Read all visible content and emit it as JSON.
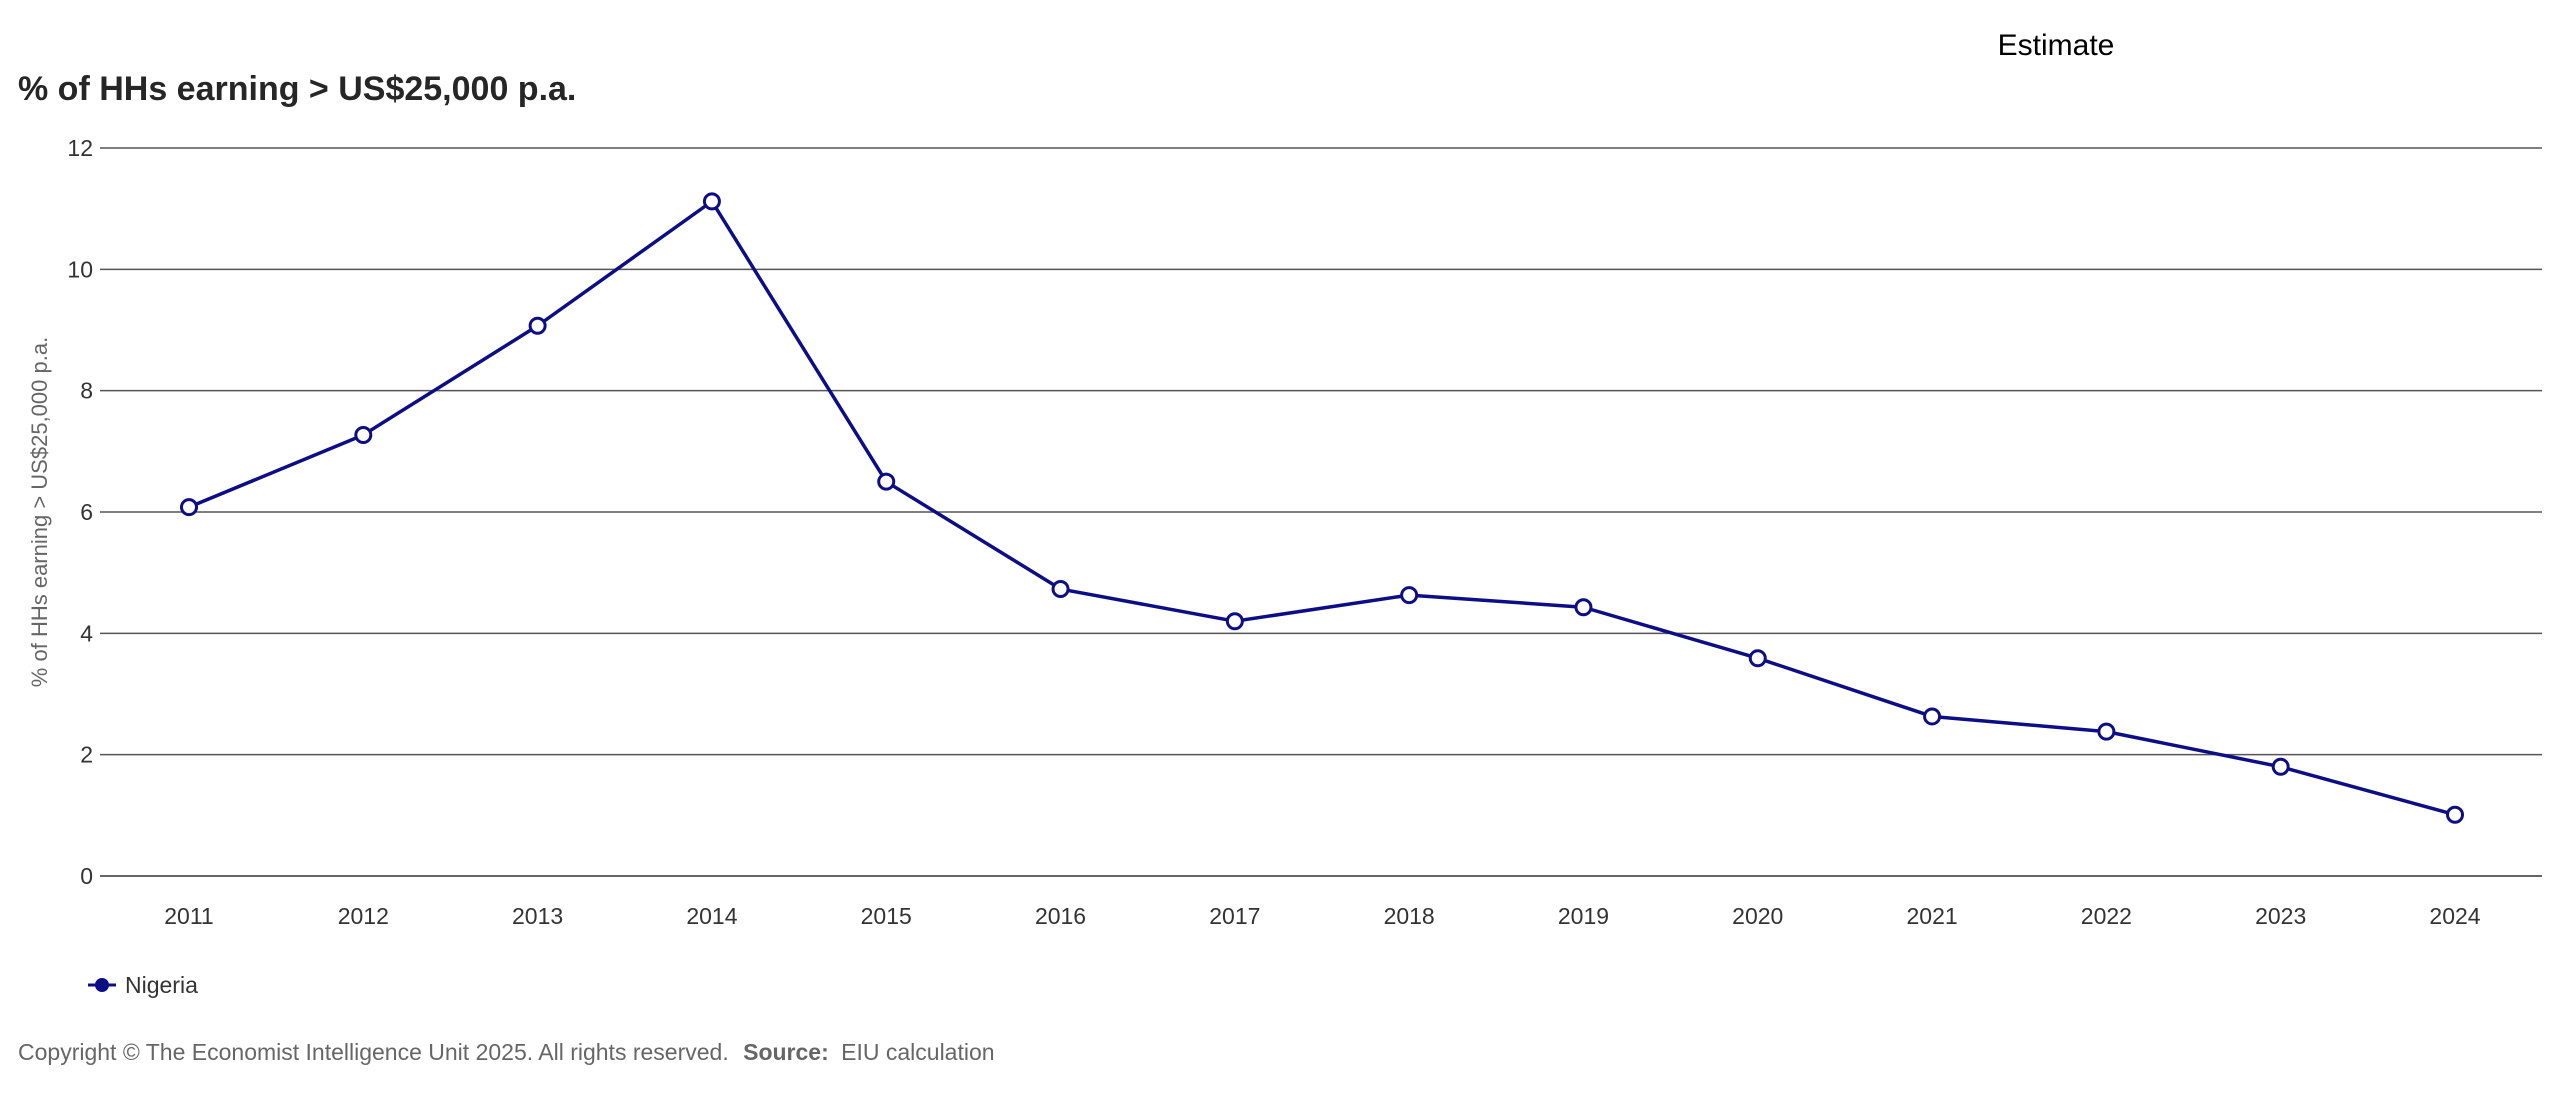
{
  "chart_data": {
    "type": "line",
    "title": "% of HHs earning > US$25,000 p.a.",
    "estimate_label": "Estimate",
    "ylabel": "% of HHs earning > US$25,000 p.a.",
    "xlabel": "",
    "ylim": [
      0,
      12
    ],
    "yticks": [
      "0",
      "2",
      "4",
      "6",
      "8",
      "10",
      "12"
    ],
    "categories": [
      "2011",
      "2012",
      "2013",
      "2014",
      "2015",
      "2016",
      "2017",
      "2018",
      "2019",
      "2020",
      "2021",
      "2022",
      "2023",
      "2024"
    ],
    "series": [
      {
        "name": "Nigeria",
        "color": "#0d0e85",
        "values": [
          6.08,
          7.27,
          9.07,
          11.12,
          6.5,
          4.73,
          4.2,
          4.63,
          4.43,
          3.59,
          2.63,
          2.38,
          1.8,
          1.01
        ]
      }
    ],
    "grid": true,
    "legend_position": "bottom-left"
  },
  "footer": {
    "copyright": "Copyright © The Economist Intelligence Unit 2025. All rights reserved.",
    "source_label": "Source:",
    "source_text": "EIU calculation"
  }
}
